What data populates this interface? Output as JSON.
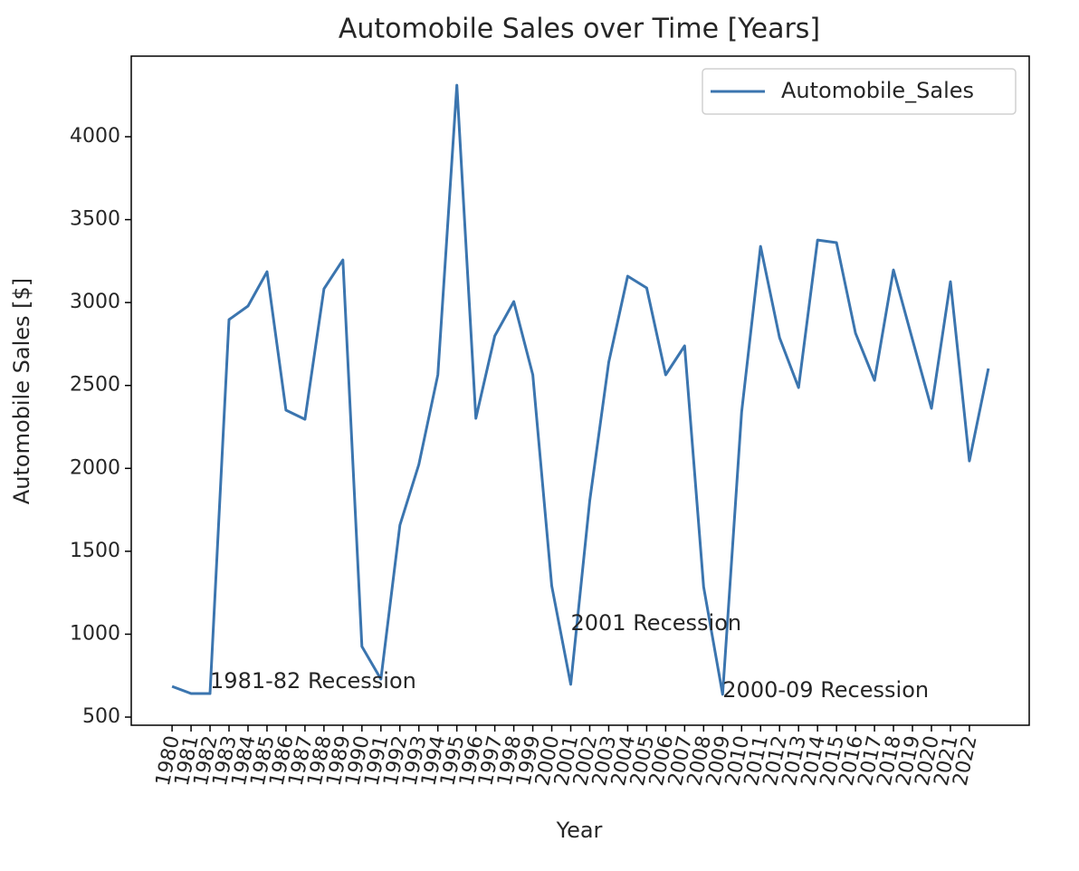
{
  "chart_data": {
    "type": "line",
    "title": "Automobile Sales over Time [Years]",
    "x_label": "Year",
    "y_label": "Automobile Sales [$]",
    "x": [
      1980,
      1981,
      1982,
      1983,
      1984,
      1985,
      1986,
      1987,
      1988,
      1989,
      1990,
      1991,
      1992,
      1993,
      1994,
      1995,
      1996,
      1997,
      1998,
      1999,
      2000,
      2001,
      2002,
      2003,
      2004,
      2005,
      2006,
      2007,
      2008,
      2009,
      2010,
      2011,
      2012,
      2013,
      2014,
      2015,
      2016,
      2017,
      2018,
      2019,
      2020,
      2021,
      2022,
      2023
    ],
    "series": [
      {
        "name": "Automobile_Sales",
        "color": "#3b75af",
        "values": [
          685,
          642,
          642,
          2897,
          2979,
          3186,
          2351,
          2296,
          3083,
          3257,
          926,
          729,
          1658,
          2023,
          2564,
          4311,
          2302,
          2799,
          3006,
          2564,
          1292,
          697,
          1805,
          2640,
          3159,
          3088,
          2564,
          2739,
          1286,
          637,
          2340,
          3339,
          2788,
          2487,
          3377,
          3361,
          2815,
          2531,
          3197,
          2777,
          2362,
          3126,
          2045,
          2602
        ]
      }
    ],
    "xlim": [
      1977.85,
      2025.15
    ],
    "ylim": [
      451,
      4486
    ],
    "xticks": [
      1980,
      1981,
      1982,
      1983,
      1984,
      1985,
      1986,
      1987,
      1988,
      1989,
      1990,
      1991,
      1992,
      1993,
      1994,
      1995,
      1996,
      1997,
      1998,
      1999,
      2000,
      2001,
      2002,
      2003,
      2004,
      2005,
      2006,
      2007,
      2008,
      2009,
      2010,
      2011,
      2012,
      2013,
      2014,
      2015,
      2016,
      2017,
      2018,
      2019,
      2020,
      2021,
      2022
    ],
    "yticks": [
      500,
      1000,
      1500,
      2000,
      2500,
      3000,
      3500,
      4000
    ],
    "annotations": [
      {
        "text": "1981-82 Recession",
        "x": 1982,
        "y": 713
      },
      {
        "text": "2001 Recession",
        "x": 2001,
        "y": 1062
      },
      {
        "text": "2000-09 Recession",
        "x": 2009,
        "y": 658
      }
    ],
    "legend": "upper right"
  }
}
